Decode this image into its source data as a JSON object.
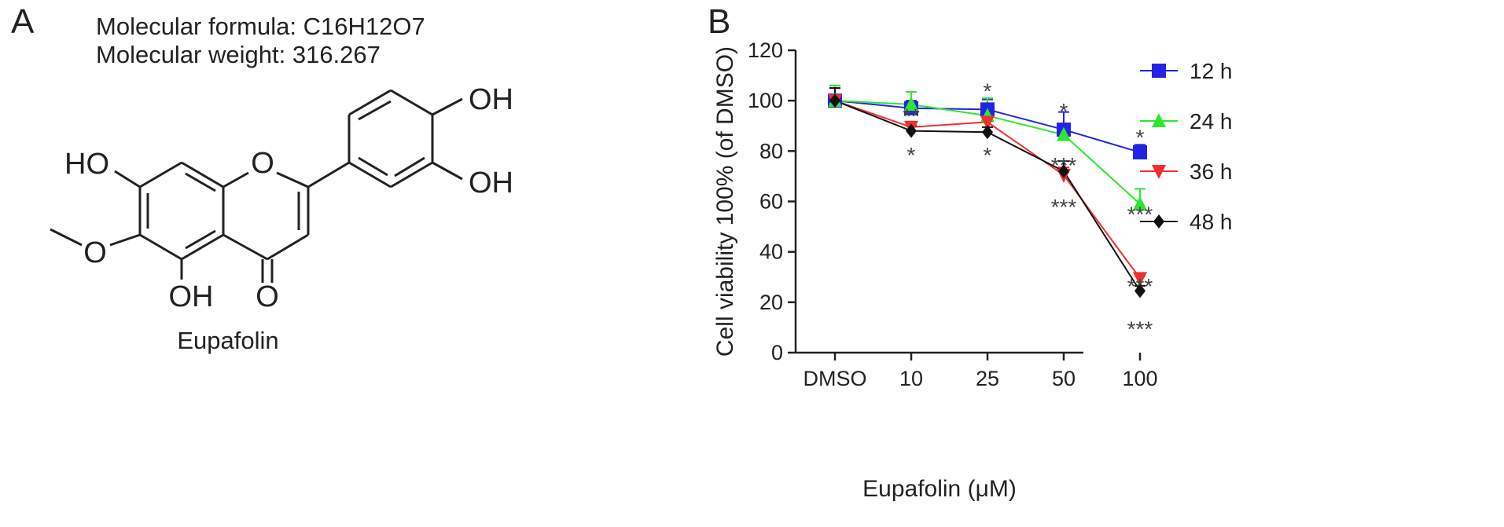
{
  "panel_a": {
    "label": "A",
    "formula_line": "Molecular formula: C16H12O7",
    "weight_line": "Molecular weight: 316.267",
    "compound_name": "Eupafolin",
    "atoms": {
      "oh_top": "OH",
      "oh_right": "OH",
      "ho_left": "HO",
      "oh_bottom": "OH",
      "ring_o": "O",
      "methoxy_o": "O",
      "carbonyl_o": "O"
    }
  },
  "panel_b": {
    "label": "B"
  },
  "chart_data": {
    "type": "line",
    "xlabel": "Eupafolin (μM)",
    "ylabel": "Cell viability 100% (of DMSO)",
    "categories": [
      "DMSO",
      "10",
      "25",
      "50",
      "100"
    ],
    "ylim": [
      0,
      120
    ],
    "yticks": [
      0,
      20,
      40,
      60,
      80,
      100,
      120
    ],
    "legend_position": "right",
    "series": [
      {
        "name": "12 h",
        "color": "#2323e6",
        "marker": "square",
        "values": [
          100,
          97,
          96.5,
          88.5,
          79.5
        ],
        "errors": [
          6,
          3,
          4,
          7,
          3
        ]
      },
      {
        "name": "24 h",
        "color": "#2ee62e",
        "marker": "triangle-up",
        "values": [
          100,
          98.5,
          94,
          86.5,
          59
        ],
        "errors": [
          6,
          5,
          7,
          3,
          6
        ]
      },
      {
        "name": "36 h",
        "color": "#f22f2f",
        "marker": "triangle-down",
        "values": [
          100,
          89.5,
          91.5,
          70.5,
          29.5
        ],
        "errors": [
          5,
          2,
          2,
          3,
          1
        ]
      },
      {
        "name": "48 h",
        "color": "#111111",
        "marker": "diamond",
        "values": [
          100,
          88,
          87.5,
          72,
          24.5
        ],
        "errors": [
          5,
          2,
          2,
          4,
          2
        ]
      }
    ],
    "annotations": [
      {
        "text": "**",
        "category": "10",
        "y": 94
      },
      {
        "text": "*",
        "category": "10",
        "y": 78.5
      },
      {
        "text": "*",
        "category": "25",
        "y": 104
      },
      {
        "text": "*",
        "category": "25",
        "y": 78.5
      },
      {
        "text": "*",
        "category": "50",
        "y": 96
      },
      {
        "text": "***",
        "category": "50",
        "y": 74.5
      },
      {
        "text": "***",
        "category": "50",
        "y": 58
      },
      {
        "text": "*",
        "category": "100",
        "y": 85.5
      },
      {
        "text": "***",
        "category": "100",
        "y": 55
      },
      {
        "text": "***",
        "category": "100",
        "y": 26.5
      },
      {
        "text": "***",
        "category": "100",
        "y": 9.5
      }
    ]
  }
}
